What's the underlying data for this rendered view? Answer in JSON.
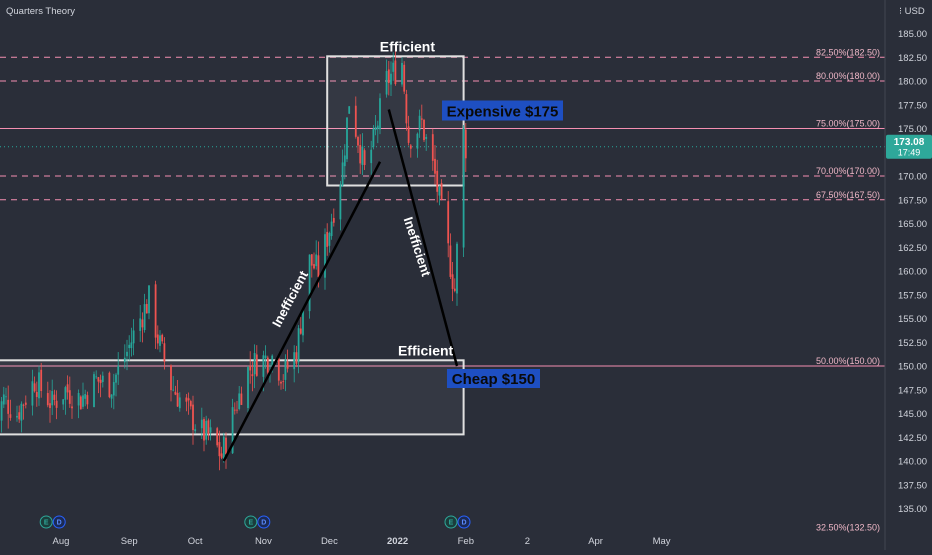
{
  "header": {
    "brand": "Quarters Theory",
    "currency": "USD"
  },
  "price_tag": {
    "price": "173.08",
    "countdown": "17:49",
    "value": 173.08
  },
  "colors": {
    "background": "#2a2e39",
    "up_candle": "#26a69a",
    "down_candle": "#ef5350",
    "fib_line": "#f48fb1",
    "zone_border": "#e0e0e0",
    "label_bg": "#1e4fc2",
    "trend_line": "#000000"
  },
  "chart_data": {
    "type": "candlestick",
    "y_axis": {
      "range": [
        132.0,
        187.0
      ],
      "ticks": [
        135.0,
        137.5,
        140.0,
        142.5,
        145.0,
        147.5,
        150.0,
        152.5,
        155.0,
        157.5,
        160.0,
        162.5,
        165.0,
        167.5,
        170.0,
        172.5,
        175.0,
        177.5,
        180.0,
        182.5,
        185.0
      ],
      "tick_labels": [
        "135.00",
        "137.50",
        "140.00",
        "142.50",
        "145.00",
        "147.50",
        "150.00",
        "152.50",
        "155.00",
        "157.50",
        "160.00",
        "162.50",
        "165.00",
        "167.50",
        "170.00",
        "172.50",
        "175.00",
        "177.50",
        "180.00",
        "182.50",
        "185.00"
      ]
    },
    "x_axis": {
      "ticks": [
        "Aug",
        "Sep",
        "Oct",
        "Nov",
        "Dec",
        "2022",
        "Feb",
        "2",
        "Apr",
        "May"
      ],
      "tick_dates": [
        "2021-08-01",
        "2021-09-01",
        "2021-10-01",
        "2021-11-01",
        "2021-12-01",
        "2022-01-01",
        "2022-02-01",
        "2022-03-01",
        "2022-04-01",
        "2022-05-01"
      ]
    },
    "fib_levels": [
      {
        "label": "82.50%(182.50)",
        "value": 182.5,
        "style": "dashed"
      },
      {
        "label": "80.00%(180.00)",
        "value": 180.0,
        "style": "dashed"
      },
      {
        "label": "75.00%(175.00)",
        "value": 175.0,
        "style": "solid"
      },
      {
        "label": "70.00%(170.00)",
        "value": 170.0,
        "style": "dashed"
      },
      {
        "label": "67.50%(167.50)",
        "value": 167.5,
        "style": "dashed"
      },
      {
        "label": "50.00%(150.00)",
        "value": 150.0,
        "style": "solid"
      },
      {
        "label": "32.50%(132.50)",
        "value": 132.5,
        "style": "none"
      }
    ],
    "zones": [
      {
        "name": "top-zone",
        "start": "2021-11-30",
        "end": "2022-01-31",
        "low": 169.0,
        "high": 182.6
      },
      {
        "name": "bottom-zone",
        "start": "2021-07-01",
        "end": "2022-01-31",
        "low": 142.8,
        "high": 150.6
      }
    ],
    "trend_lines": [
      {
        "from": [
          "2021-10-14",
          140.0
        ],
        "to": [
          "2021-12-24",
          171.5
        ]
      },
      {
        "from": [
          "2021-12-28",
          177.0
        ],
        "to": [
          "2022-01-28",
          150.0
        ]
      }
    ],
    "annotations": {
      "top_efficient": "Efficient",
      "bottom_efficient": "Efficient",
      "inefficient_up": "Inefficient",
      "inefficient_down": "Inefficient",
      "expensive": "Expensive $175",
      "cheap": "Cheap $150"
    },
    "events": [
      {
        "date": "2021-07-28",
        "badges": [
          "E",
          "D"
        ]
      },
      {
        "date": "2021-10-29",
        "badges": [
          "E",
          "D"
        ]
      },
      {
        "date": "2022-01-28",
        "badges": [
          "E",
          "D"
        ]
      }
    ],
    "price_path": [
      [
        "2021-07-01",
        144.0
      ],
      [
        "2021-07-06",
        146.5
      ],
      [
        "2021-07-12",
        145.0
      ],
      [
        "2021-07-20",
        148.5
      ],
      [
        "2021-07-28",
        146.0
      ],
      [
        "2021-08-03",
        147.5
      ],
      [
        "2021-08-10",
        146.5
      ],
      [
        "2021-08-17",
        148.5
      ],
      [
        "2021-08-24",
        148.0
      ],
      [
        "2021-08-31",
        151.5
      ],
      [
        "2021-09-06",
        155.0
      ],
      [
        "2021-09-10",
        157.0
      ],
      [
        "2021-09-14",
        153.0
      ],
      [
        "2021-09-20",
        148.0
      ],
      [
        "2021-09-27",
        145.5
      ],
      [
        "2021-10-04",
        143.0
      ],
      [
        "2021-10-08",
        142.5
      ],
      [
        "2021-10-13",
        140.5
      ],
      [
        "2021-10-19",
        145.5
      ],
      [
        "2021-10-25",
        149.5
      ],
      [
        "2021-10-29",
        150.5
      ],
      [
        "2021-11-05",
        151.0
      ],
      [
        "2021-11-10",
        149.0
      ],
      [
        "2021-11-16",
        151.5
      ],
      [
        "2021-11-22",
        161.0
      ],
      [
        "2021-11-26",
        160.0
      ],
      [
        "2021-12-01",
        164.5
      ],
      [
        "2021-12-07",
        171.0
      ],
      [
        "2021-12-10",
        178.0
      ],
      [
        "2021-12-14",
        174.0
      ],
      [
        "2021-12-17",
        170.5
      ],
      [
        "2021-12-21",
        173.5
      ],
      [
        "2021-12-27",
        180.0
      ],
      [
        "2022-01-03",
        182.0
      ],
      [
        "2022-01-06",
        174.0
      ],
      [
        "2022-01-12",
        175.5
      ],
      [
        "2022-01-18",
        170.0
      ],
      [
        "2022-01-24",
        162.0
      ],
      [
        "2022-01-27",
        158.0
      ],
      [
        "2022-01-31",
        174.5
      ],
      [
        "2022-02-01",
        173.08
      ]
    ]
  }
}
